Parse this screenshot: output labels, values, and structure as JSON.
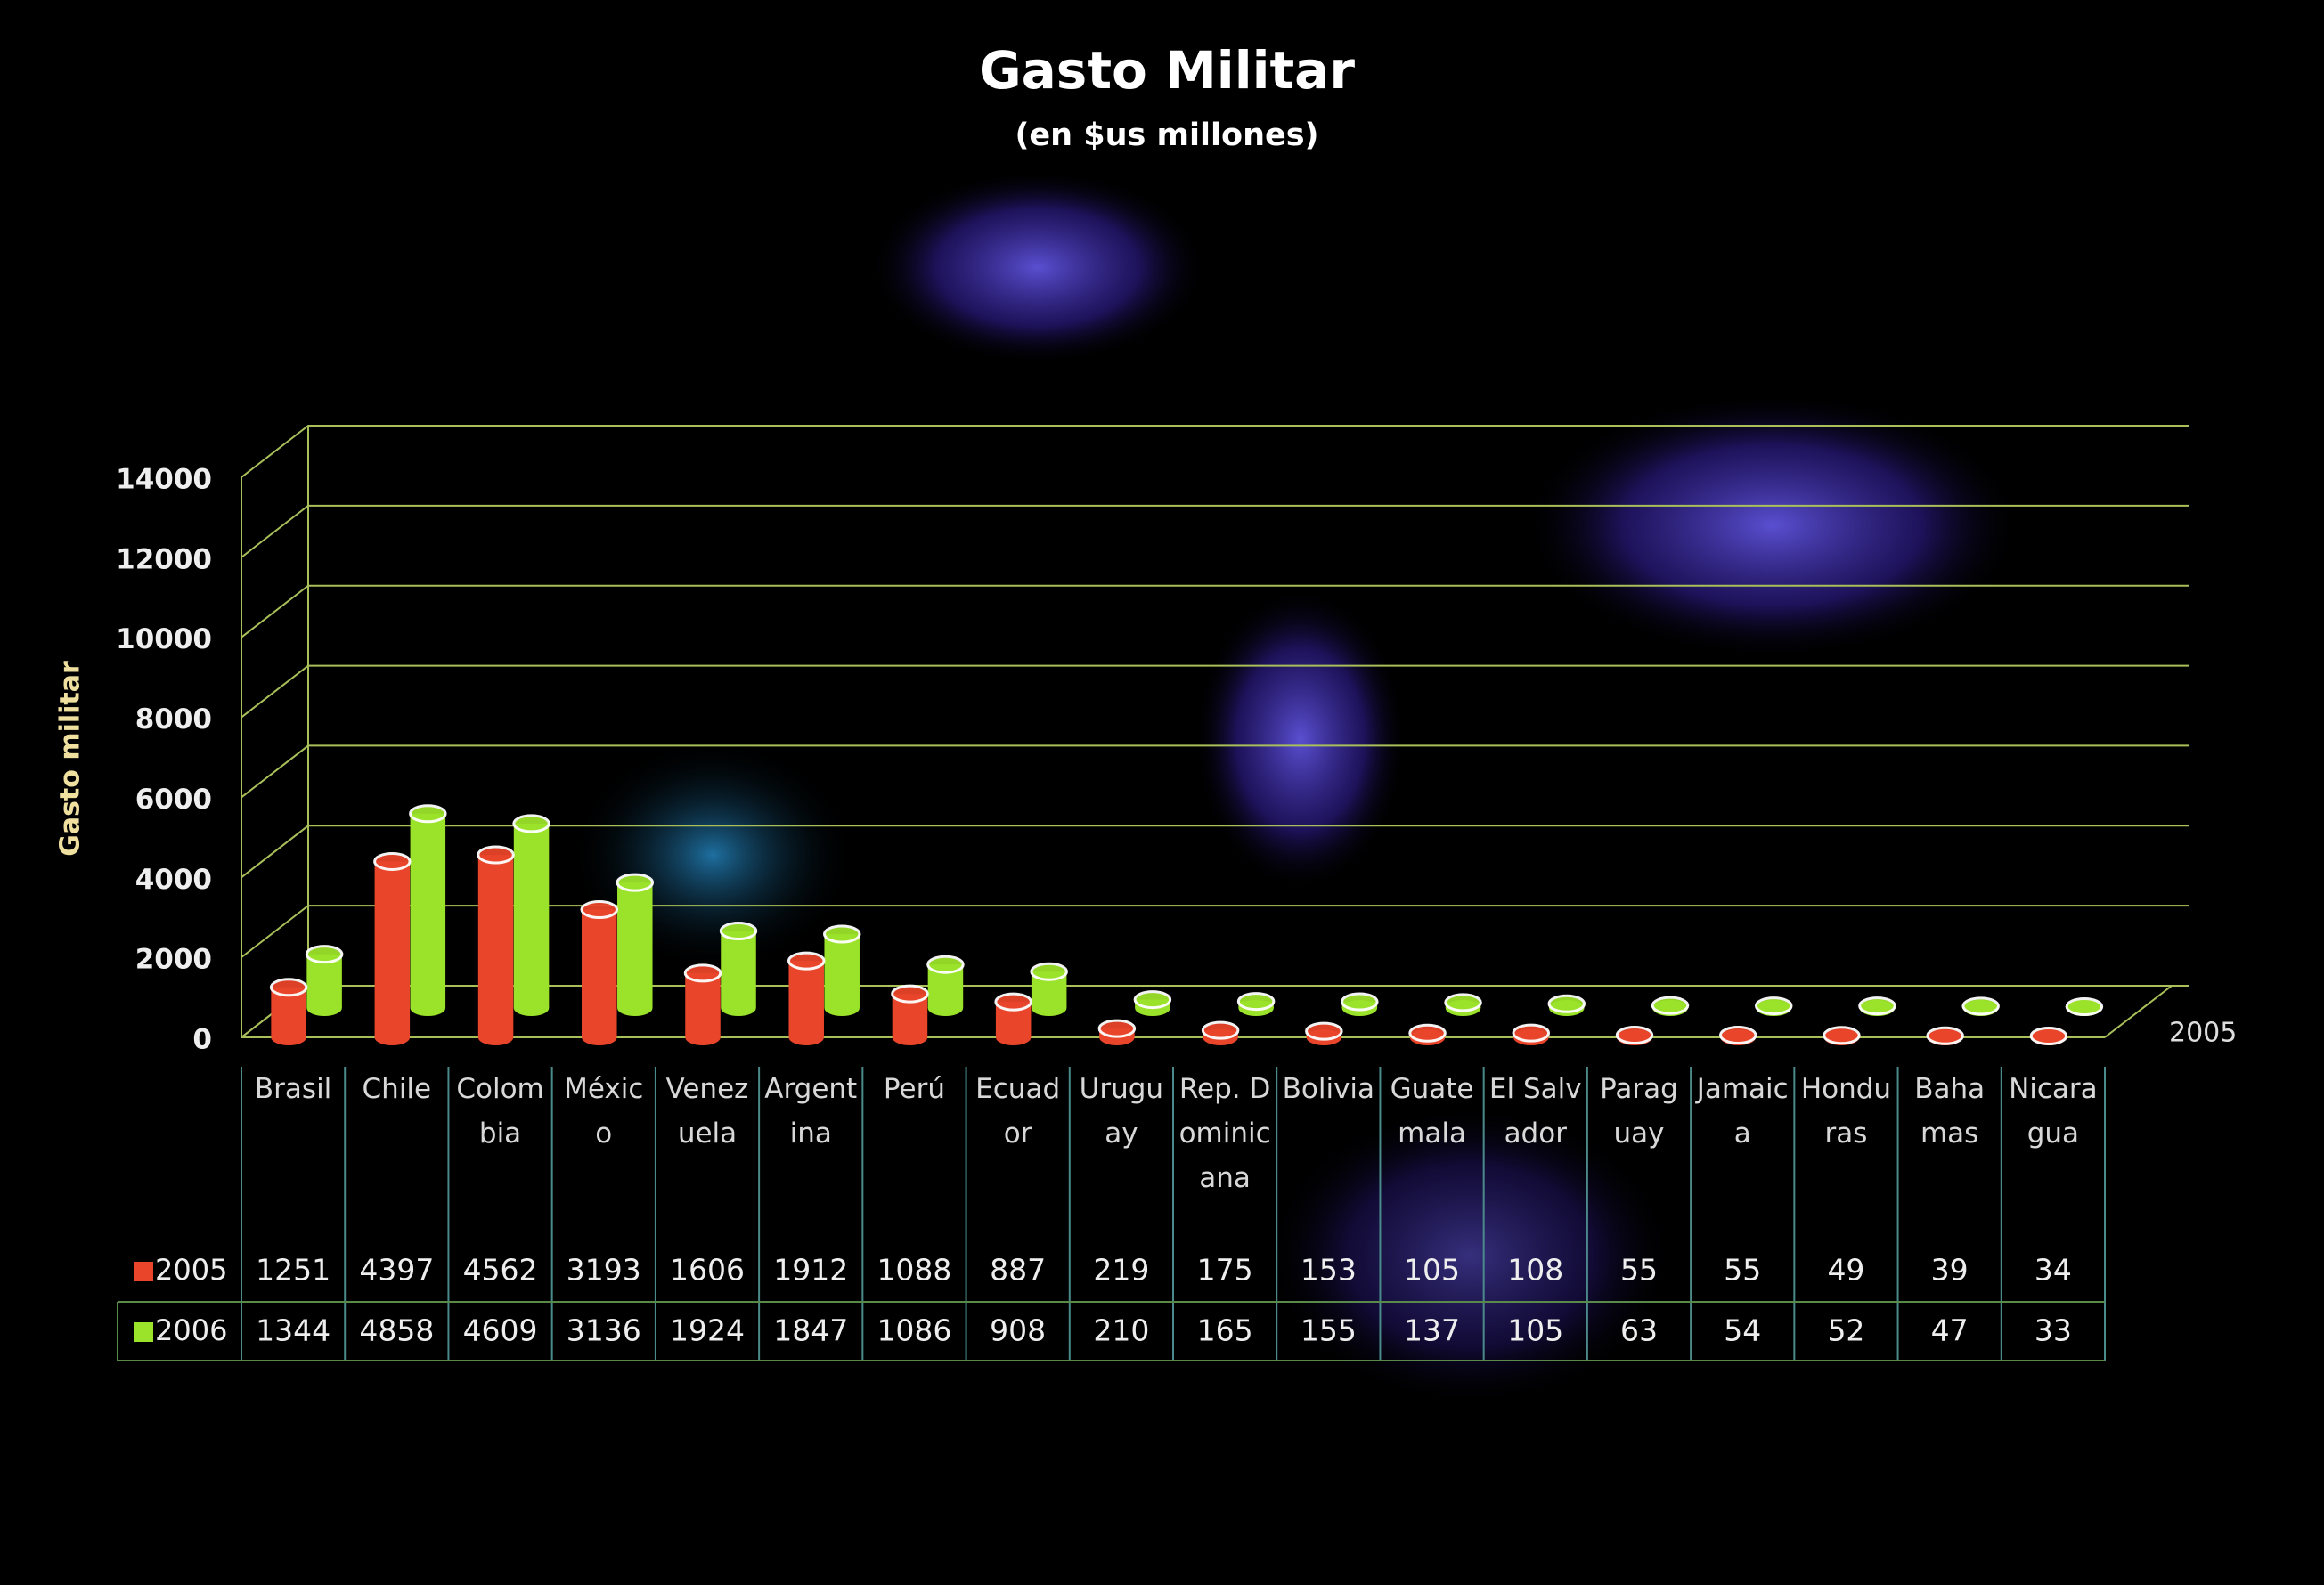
{
  "chart_data": {
    "type": "bar",
    "title": "Gasto Militar",
    "subtitle": "(en $us millones)",
    "y_axis_label": "Gasto militar",
    "categories": [
      "Brasil",
      "Chile",
      "Colombia",
      "México",
      "Venezuela",
      "Argentina",
      "Perú",
      "Ecuador",
      "Uruguay",
      "Rep. Dominicana",
      "Bolivia",
      "Guatemala",
      "El Salvador",
      "Paraguay",
      "Jamaica",
      "Honduras",
      "Bahamas",
      "Nicaragua"
    ],
    "series": [
      {
        "name": "2005",
        "color": "#e8452a",
        "values": [
          1251,
          4397,
          4562,
          3193,
          1606,
          1912,
          1088,
          887,
          219,
          175,
          153,
          105,
          108,
          55,
          55,
          49,
          39,
          34
        ]
      },
      {
        "name": "2006",
        "color": "#9be22a",
        "values": [
          1344,
          4858,
          4609,
          3136,
          1924,
          1847,
          1086,
          908,
          210,
          165,
          155,
          137,
          105,
          63,
          54,
          52,
          47,
          33
        ]
      }
    ],
    "ylim": [
      0,
      14000
    ],
    "yticks": [
      0,
      2000,
      4000,
      6000,
      8000,
      10000,
      12000,
      14000
    ],
    "grid": true
  }
}
